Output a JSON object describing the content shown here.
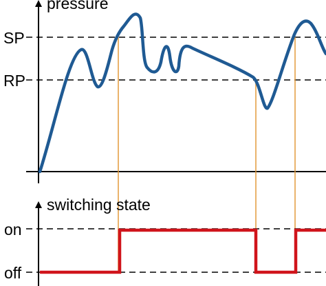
{
  "diagram": {
    "top_chart": {
      "title": "pressure",
      "levels": [
        "SP",
        "RP"
      ]
    },
    "bottom_chart": {
      "title": "switching state",
      "levels": [
        "on",
        "off"
      ]
    },
    "colors": {
      "pressure_curve": "#1f5a93",
      "switch_signal": "#d0141b",
      "projection_lines": "#e39a3a",
      "axes": "#000000",
      "reference_lines": "#000000"
    }
  }
}
